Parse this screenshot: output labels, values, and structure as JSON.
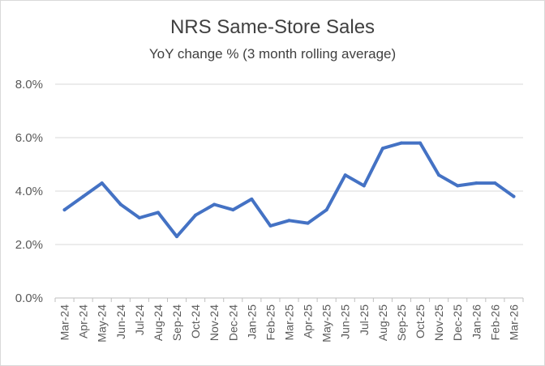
{
  "chart_data": {
    "type": "line",
    "title": "NRS Same-Store Sales",
    "subtitle": "YoY change % (3 month rolling average)",
    "xlabel": "",
    "ylabel": "",
    "ylim": [
      0,
      8
    ],
    "yticks": [
      "0.0%",
      "2.0%",
      "4.0%",
      "6.0%",
      "8.0%"
    ],
    "grid": true,
    "legend": "none",
    "categories": [
      "Mar-24",
      "Apr-24",
      "May-24",
      "Jun-24",
      "Jul-24",
      "Aug-24",
      "Sep-24",
      "Oct-24",
      "Nov-24",
      "Dec-24",
      "Jan-25",
      "Feb-25",
      "Mar-25",
      "Apr-25",
      "May-25",
      "Jun-25",
      "Jul-25",
      "Aug-25",
      "Sep-25",
      "Oct-25",
      "Nov-25",
      "Dec-25",
      "Jan-26",
      "Feb-26",
      "Mar-26"
    ],
    "series": [
      {
        "color": "#4472c4",
        "values": [
          3.3,
          3.8,
          4.3,
          3.5,
          3.0,
          3.2,
          2.3,
          3.1,
          3.5,
          3.3,
          3.7,
          2.7,
          2.9,
          2.8,
          3.3,
          4.6,
          4.2,
          5.6,
          5.8,
          5.8,
          4.6,
          4.2,
          4.3,
          4.3,
          3.8
        ]
      }
    ]
  }
}
